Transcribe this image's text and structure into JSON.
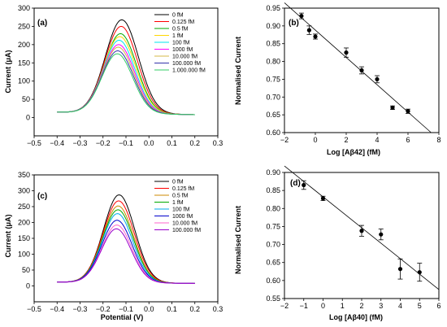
{
  "chart_data": [
    {
      "id": "a",
      "type": "line",
      "panel_label": "(a)",
      "xlabel": "",
      "ylabel": "Current (μA)",
      "xlim": [
        -0.5,
        0.3
      ],
      "ylim": [
        -50,
        300
      ],
      "xticks": [
        -0.5,
        -0.4,
        -0.3,
        -0.2,
        -0.1,
        0.0,
        0.1,
        0.2,
        0.3
      ],
      "xtick_labels": [
        "−0.5",
        "−0.4",
        "−0.3",
        "−0.2",
        "−0.1",
        "0.0",
        "0.1",
        "0.2",
        "0.3"
      ],
      "yticks": [
        0,
        50,
        100,
        150,
        200,
        250,
        300
      ],
      "ytick_labels": [
        "0",
        "50",
        "100",
        "150",
        "200",
        "250",
        "300"
      ],
      "legend_position": "top-right",
      "baseline": {
        "x_start": -0.4,
        "x_end": 0.2,
        "y_start": 15,
        "y_end": 8
      },
      "series": [
        {
          "name": "0 fM",
          "color": "#000000",
          "peak_x": -0.118,
          "peak_y": 268,
          "width": 0.072
        },
        {
          "name": "0.125 fM",
          "color": "#ff0000",
          "peak_x": -0.121,
          "peak_y": 250,
          "width": 0.071
        },
        {
          "name": "0.5 fM",
          "color": "#00aa00",
          "peak_x": -0.124,
          "peak_y": 230,
          "width": 0.07
        },
        {
          "name": "1 fM",
          "color": "#ffd700",
          "peak_x": -0.127,
          "peak_y": 222,
          "width": 0.07
        },
        {
          "name": "100 fM",
          "color": "#00e5ee",
          "peak_x": -0.13,
          "peak_y": 212,
          "width": 0.069
        },
        {
          "name": "1000 fM",
          "color": "#ff00ff",
          "peak_x": -0.132,
          "peak_y": 200,
          "width": 0.069
        },
        {
          "name": "10.000 fM",
          "color": "#d4b84a",
          "peak_x": -0.134,
          "peak_y": 193,
          "width": 0.068
        },
        {
          "name": "100.000 fM",
          "color": "#3333aa",
          "peak_x": -0.136,
          "peak_y": 183,
          "width": 0.068
        },
        {
          "name": "1.000.000 fM",
          "color": "#33cc66",
          "peak_x": -0.138,
          "peak_y": 175,
          "width": 0.067
        }
      ]
    },
    {
      "id": "b",
      "type": "scatter",
      "panel_label": "(b)",
      "xlabel": "Log [Aβ42] (fM)",
      "ylabel": "Normalised Current",
      "xlim": [
        -2,
        8
      ],
      "ylim": [
        0.6,
        0.95
      ],
      "xticks": [
        -2,
        0,
        2,
        4,
        6,
        8
      ],
      "xtick_labels": [
        "−2",
        "0",
        "2",
        "4",
        "6",
        "8"
      ],
      "yticks": [
        0.6,
        0.65,
        0.7,
        0.75,
        0.8,
        0.85,
        0.9,
        0.95
      ],
      "ytick_labels": [
        "0.60",
        "0.65",
        "0.70",
        "0.75",
        "0.80",
        "0.85",
        "0.90",
        "0.95"
      ],
      "points": [
        {
          "x": -0.9,
          "y": 0.928,
          "err": 0.008
        },
        {
          "x": -0.4,
          "y": 0.888,
          "err": 0.012
        },
        {
          "x": 0.0,
          "y": 0.87,
          "err": 0.007
        },
        {
          "x": 2.0,
          "y": 0.825,
          "err": 0.013
        },
        {
          "x": 3.0,
          "y": 0.775,
          "err": 0.01
        },
        {
          "x": 4.0,
          "y": 0.75,
          "err": 0.01
        },
        {
          "x": 5.0,
          "y": 0.67,
          "err": 0.005
        },
        {
          "x": 6.0,
          "y": 0.66,
          "err": 0.006
        }
      ],
      "fit": {
        "x1": -2.0,
        "y1": 0.965,
        "x2": 7.5,
        "y2": 0.6
      }
    },
    {
      "id": "c",
      "type": "line",
      "panel_label": "(c)",
      "xlabel": "Potential (V)",
      "ylabel": "Current (μA)",
      "xlim": [
        -0.5,
        0.3
      ],
      "ylim": [
        -50,
        350
      ],
      "xticks": [
        -0.5,
        -0.4,
        -0.3,
        -0.2,
        -0.1,
        0.0,
        0.1,
        0.2,
        0.3
      ],
      "xtick_labels": [
        "−0.5",
        "−0.4",
        "−0.3",
        "−0.2",
        "−0.1",
        "0.0",
        "0.1",
        "0.2",
        "0.3"
      ],
      "yticks": [
        0,
        50,
        100,
        150,
        200,
        250,
        300,
        350
      ],
      "ytick_labels": [
        "0",
        "50",
        "100",
        "150",
        "200",
        "250",
        "300",
        "350"
      ],
      "legend_position": "top-right",
      "baseline": {
        "x_start": -0.4,
        "x_end": 0.2,
        "y_start": 12,
        "y_end": 8
      },
      "series": [
        {
          "name": "0 fM",
          "color": "#000000",
          "peak_x": -0.13,
          "peak_y": 287,
          "width": 0.068
        },
        {
          "name": "0.125 fM",
          "color": "#ff0000",
          "peak_x": -0.132,
          "peak_y": 268,
          "width": 0.068
        },
        {
          "name": "0.5 fM",
          "color": "#cc8800",
          "peak_x": -0.134,
          "peak_y": 252,
          "width": 0.067
        },
        {
          "name": "1 fM",
          "color": "#00aa00",
          "peak_x": -0.135,
          "peak_y": 240,
          "width": 0.067
        },
        {
          "name": "100 fM",
          "color": "#00aaee",
          "peak_x": -0.137,
          "peak_y": 228,
          "width": 0.066
        },
        {
          "name": "1000 fM",
          "color": "#0000cc",
          "peak_x": -0.139,
          "peak_y": 207,
          "width": 0.066
        },
        {
          "name": "10.000 fM",
          "color": "#ff66cc",
          "peak_x": -0.14,
          "peak_y": 192,
          "width": 0.065
        },
        {
          "name": "100.000 fM",
          "color": "#9900cc",
          "peak_x": -0.142,
          "peak_y": 180,
          "width": 0.065
        }
      ]
    },
    {
      "id": "d",
      "type": "scatter",
      "panel_label": "(d)",
      "xlabel": "Log [Aβ40] (fM)",
      "ylabel": "Normalised Current",
      "xlim": [
        -2,
        6
      ],
      "ylim": [
        0.55,
        0.9
      ],
      "xticks": [
        -2,
        -1,
        0,
        1,
        2,
        3,
        4,
        5,
        6
      ],
      "xtick_labels": [
        "−2",
        "−1",
        "0",
        "1",
        "2",
        "3",
        "4",
        "5",
        "6"
      ],
      "yticks": [
        0.55,
        0.6,
        0.65,
        0.7,
        0.75,
        0.8,
        0.85,
        0.9
      ],
      "ytick_labels": [
        "0.55",
        "0.60",
        "0.65",
        "0.70",
        "0.75",
        "0.80",
        "0.85",
        "0.90"
      ],
      "points": [
        {
          "x": -1.0,
          "y": 0.865,
          "err": 0.012
        },
        {
          "x": 0.0,
          "y": 0.828,
          "err": 0.006
        },
        {
          "x": 2.0,
          "y": 0.738,
          "err": 0.015
        },
        {
          "x": 3.0,
          "y": 0.728,
          "err": 0.015
        },
        {
          "x": 4.0,
          "y": 0.632,
          "err": 0.028
        },
        {
          "x": 5.0,
          "y": 0.623,
          "err": 0.025
        }
      ],
      "fit": {
        "x1": -2.0,
        "y1": 0.918,
        "x2": 6.0,
        "y2": 0.575
      }
    }
  ]
}
